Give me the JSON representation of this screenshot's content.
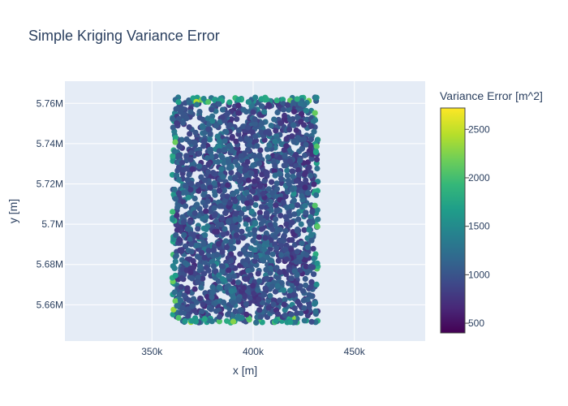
{
  "chart_data": {
    "type": "scatter",
    "title": "Simple Kriging Variance Error",
    "xlabel": "x [m]",
    "ylabel": "y [m]",
    "xlim": [
      307000,
      485000
    ],
    "ylim": [
      5642000,
      5771000
    ],
    "x_ticks": [
      {
        "value": 350000,
        "label": "350k"
      },
      {
        "value": 400000,
        "label": "400k"
      },
      {
        "value": 450000,
        "label": "450k"
      }
    ],
    "y_ticks": [
      {
        "value": 5660000,
        "label": "5.66M"
      },
      {
        "value": 5680000,
        "label": "5.68M"
      },
      {
        "value": 5700000,
        "label": "5.7M"
      },
      {
        "value": 5720000,
        "label": "5.72M"
      },
      {
        "value": 5740000,
        "label": "5.74M"
      },
      {
        "value": 5760000,
        "label": "5.76M"
      }
    ],
    "colorbar": {
      "title": "Variance Error [m^2]",
      "colorscale": "Viridis",
      "cmin": 400,
      "cmax": 2720,
      "ticks": [
        500,
        1000,
        1500,
        2000,
        2500
      ]
    },
    "grid": true,
    "series": [
      {
        "x_range": [
          360000,
          432000
        ],
        "y_range": [
          5651000,
          5763000
        ],
        "value_range": [
          400,
          2700
        ]
      }
    ],
    "colors": {
      "plot_bg": "#e5ecf6",
      "grid": "#ffffff",
      "text": "#2a3f5f"
    }
  }
}
